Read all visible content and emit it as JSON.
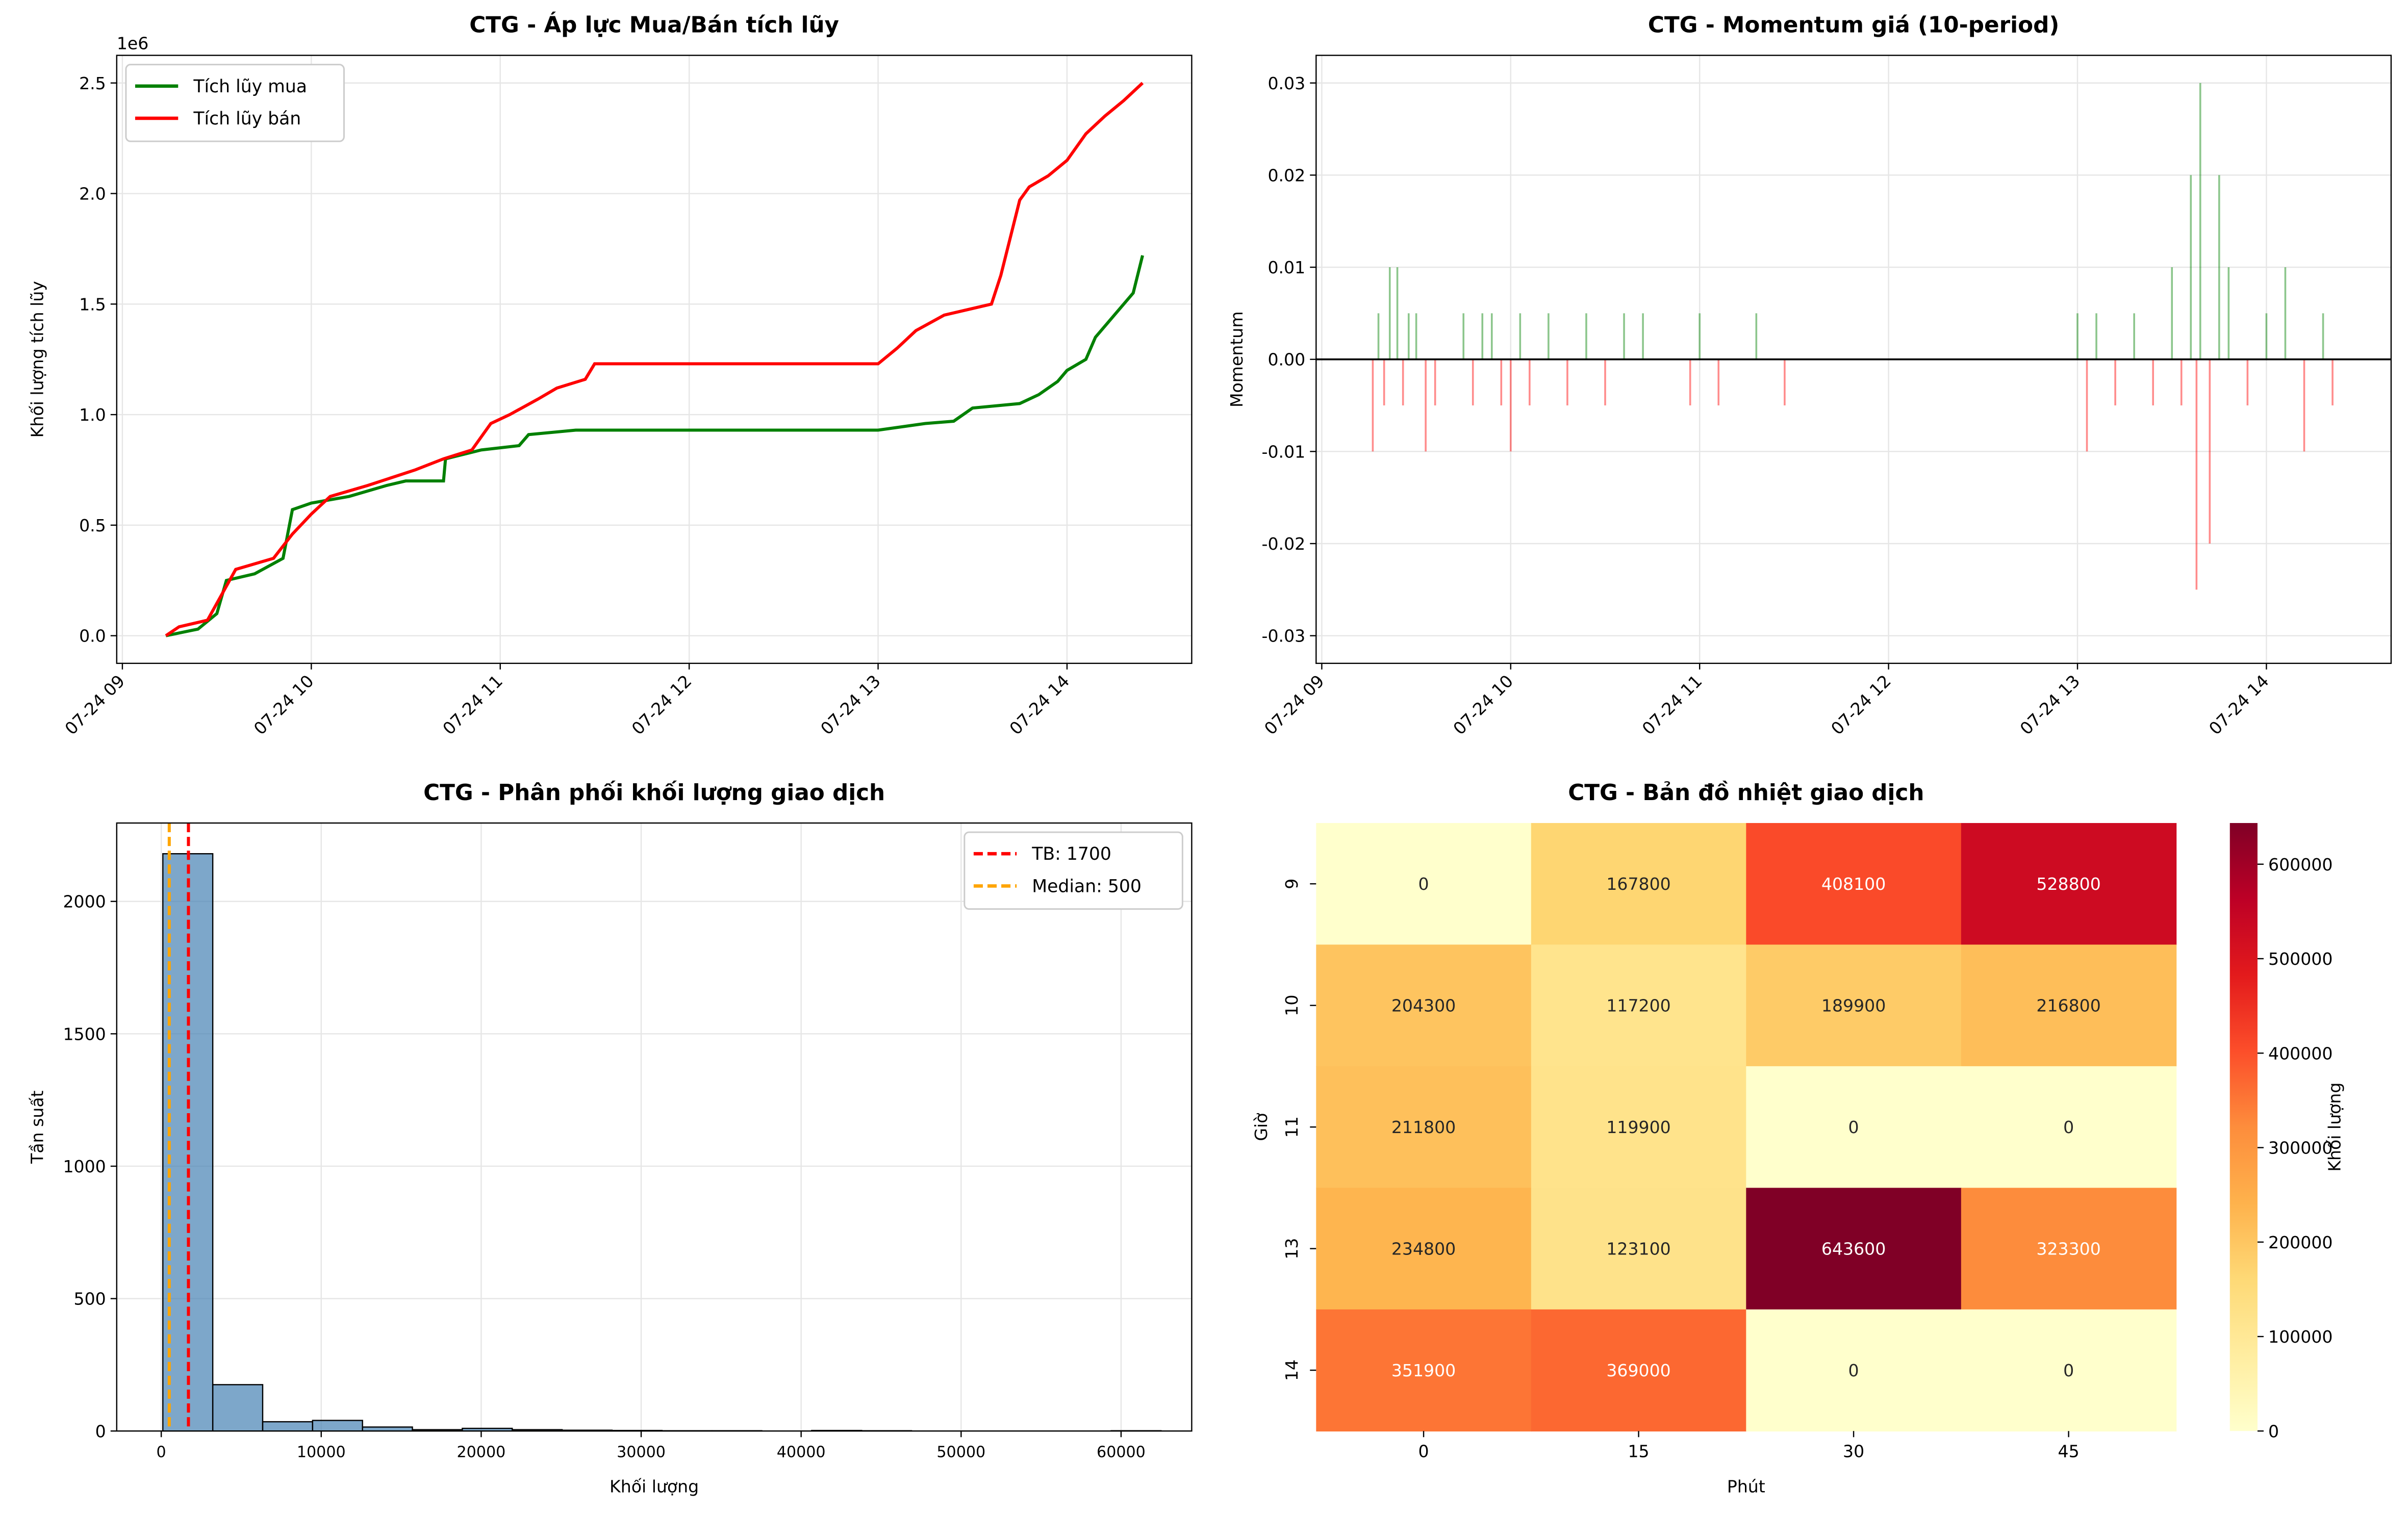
{
  "chart_data": [
    {
      "type": "line",
      "title": "CTG - Áp lực Mua/Bán tích lũy",
      "ylabel": "Khối lượng tích lũy",
      "y_offset_label": "1e6",
      "legend": "upper left",
      "grid": true,
      "xlim": [
        8.97,
        14.66
      ],
      "ylim": [
        -125000,
        2625000
      ],
      "xticks": [
        {
          "value": 9,
          "label": "07-24 09"
        },
        {
          "value": 10,
          "label": "07-24 10"
        },
        {
          "value": 11,
          "label": "07-24 11"
        },
        {
          "value": 12,
          "label": "07-24 12"
        },
        {
          "value": 13,
          "label": "07-24 13"
        },
        {
          "value": 14,
          "label": "07-24 14"
        }
      ],
      "yticks": [
        {
          "value": 0,
          "label": "0.0"
        },
        {
          "value": 500000,
          "label": "0.5"
        },
        {
          "value": 1000000,
          "label": "1.0"
        },
        {
          "value": 1500000,
          "label": "1.5"
        },
        {
          "value": 2000000,
          "label": "2.0"
        },
        {
          "value": 2500000,
          "label": "2.5"
        }
      ],
      "series": [
        {
          "name": "Tích lũy mua",
          "color": "#008000",
          "x": [
            9.23,
            9.4,
            9.5,
            9.55,
            9.7,
            9.85,
            9.9,
            10.0,
            10.2,
            10.4,
            10.5,
            10.7,
            10.71,
            10.9,
            11.1,
            11.15,
            11.4,
            12.0,
            13.0,
            13.25,
            13.4,
            13.5,
            13.75,
            13.85,
            13.95,
            14.0,
            14.1,
            14.15,
            14.25,
            14.35,
            14.4
          ],
          "values": [
            0,
            30000,
            100000,
            250000,
            280000,
            350000,
            570000,
            600000,
            630000,
            680000,
            700000,
            700000,
            800000,
            840000,
            860000,
            910000,
            930000,
            930000,
            930000,
            960000,
            970000,
            1030000,
            1050000,
            1090000,
            1150000,
            1200000,
            1250000,
            1350000,
            1450000,
            1550000,
            1720000
          ]
        },
        {
          "name": "Tích lũy bán",
          "color": "#ff0000",
          "x": [
            9.23,
            9.3,
            9.45,
            9.6,
            9.8,
            9.9,
            10.0,
            10.1,
            10.3,
            10.55,
            10.7,
            10.85,
            10.95,
            11.05,
            11.2,
            11.3,
            11.45,
            11.5,
            12.0,
            13.0,
            13.1,
            13.2,
            13.35,
            13.6,
            13.65,
            13.75,
            13.8,
            13.9,
            14.0,
            14.1,
            14.2,
            14.3,
            14.4
          ],
          "values": [
            0,
            40000,
            70000,
            300000,
            350000,
            460000,
            550000,
            630000,
            680000,
            750000,
            800000,
            840000,
            960000,
            1000000,
            1070000,
            1120000,
            1160000,
            1230000,
            1230000,
            1230000,
            1300000,
            1380000,
            1450000,
            1500000,
            1630000,
            1970000,
            2030000,
            2080000,
            2150000,
            2270000,
            2350000,
            2420000,
            2500000
          ]
        }
      ]
    },
    {
      "type": "bar",
      "title": "CTG - Momentum giá (10-period)",
      "ylabel": "Momentum",
      "grid": true,
      "positive_color": "#008000",
      "negative_color": "#ff0000",
      "hline": 0,
      "xlim": [
        8.97,
        14.66
      ],
      "ylim": [
        -0.033,
        0.033
      ],
      "xticks": [
        {
          "value": 9,
          "label": "07-24 09"
        },
        {
          "value": 10,
          "label": "07-24 10"
        },
        {
          "value": 11,
          "label": "07-24 11"
        },
        {
          "value": 12,
          "label": "07-24 12"
        },
        {
          "value": 13,
          "label": "07-24 13"
        },
        {
          "value": 14,
          "label": "07-24 14"
        }
      ],
      "yticks": [
        -0.03,
        -0.02,
        -0.01,
        {
          "value": 0,
          "label": "0.00"
        },
        0.01,
        0.02,
        0.03
      ],
      "x": [
        9.27,
        9.3,
        9.33,
        9.36,
        9.4,
        9.43,
        9.46,
        9.5,
        9.55,
        9.6,
        9.75,
        9.8,
        9.85,
        9.9,
        9.95,
        10.0,
        10.05,
        10.1,
        10.2,
        10.3,
        10.4,
        10.5,
        10.6,
        10.7,
        10.95,
        11.0,
        11.1,
        11.3,
        11.45,
        13.0,
        13.05,
        13.1,
        13.2,
        13.3,
        13.4,
        13.5,
        13.55,
        13.6,
        13.63,
        13.65,
        13.7,
        13.75,
        13.8,
        13.9,
        14.0,
        14.1,
        14.2,
        14.3,
        14.35
      ],
      "values": [
        -0.01,
        0.005,
        -0.005,
        0.01,
        0.01,
        -0.005,
        0.005,
        0.005,
        -0.01,
        -0.005,
        0.005,
        -0.005,
        0.005,
        0.005,
        -0.005,
        -0.01,
        0.005,
        -0.005,
        0.005,
        -0.005,
        0.005,
        -0.005,
        0.005,
        0.005,
        -0.005,
        0.005,
        -0.005,
        0.005,
        -0.005,
        0.005,
        -0.01,
        0.005,
        -0.005,
        0.005,
        -0.005,
        0.01,
        -0.005,
        0.02,
        -0.025,
        0.03,
        -0.02,
        0.02,
        0.01,
        -0.005,
        0.005,
        0.01,
        -0.01,
        0.005,
        -0.005
      ]
    },
    {
      "type": "histogram",
      "title": "CTG - Phân phối khối lượng giao dịch",
      "xlabel": "Khối lượng",
      "ylabel": "Tần suất",
      "grid": true,
      "color": "#4682b4",
      "legend": "upper right",
      "xlim": [
        -2784,
        64416
      ],
      "ylim": [
        0,
        2296
      ],
      "xticks": [
        0,
        10000,
        20000,
        30000,
        40000,
        50000,
        60000
      ],
      "yticks": [
        0,
        500,
        1000,
        1500,
        2000
      ],
      "bins": [
        100,
        3220,
        6340,
        9460,
        12580,
        15700,
        18820,
        21940,
        25060,
        28180,
        31300,
        34420,
        37540,
        40660,
        43780,
        46900,
        50020,
        53140,
        56260,
        59380,
        62500
      ],
      "counts": [
        2180,
        175,
        35,
        40,
        15,
        5,
        10,
        5,
        3,
        2,
        1,
        1,
        0,
        2,
        1,
        0,
        0,
        0,
        0,
        1
      ],
      "vlines": [
        {
          "label": "TB: 1700",
          "value": 1700,
          "color": "#ff0000"
        },
        {
          "label": "Median: 500",
          "value": 500,
          "color": "#ffa500"
        }
      ]
    },
    {
      "type": "heatmap",
      "title": "CTG - Bản đồ nhiệt giao dịch",
      "xlabel": "Phút",
      "ylabel": "Giờ",
      "colorbar_label": "Khối lượng",
      "columns": [
        "0",
        "15",
        "30",
        "45"
      ],
      "rows": [
        "9",
        "10",
        "11",
        "13",
        "14"
      ],
      "values": [
        [
          0,
          167800,
          408100,
          528800
        ],
        [
          204300,
          117200,
          189900,
          216800
        ],
        [
          211800,
          119900,
          0,
          0
        ],
        [
          234800,
          123100,
          643600,
          323300
        ],
        [
          351900,
          369000,
          0,
          0
        ]
      ],
      "clim": [
        0,
        643600
      ],
      "colorbar_ticks": [
        0,
        100000,
        200000,
        300000,
        400000,
        500000,
        600000
      ]
    }
  ]
}
